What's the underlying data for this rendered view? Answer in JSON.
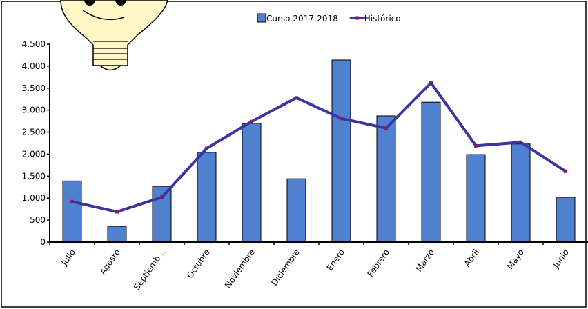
{
  "chart_data": {
    "type": "bar",
    "categories": [
      "Julio",
      "Agosto",
      "Septiemb...",
      "Octubre",
      "Noviembre",
      "Diciembre",
      "Enero",
      "Febrero",
      "Marzo",
      "Abril",
      "Mayo",
      "Junio"
    ],
    "series": [
      {
        "name": "Curso 2017-2018",
        "type": "bar",
        "color": "#4f81d0",
        "values": [
          1390,
          360,
          1270,
          2040,
          2700,
          1440,
          4140,
          2870,
          3180,
          1990,
          2230,
          1020
        ]
      },
      {
        "name": "Histórico",
        "type": "line",
        "color": "#3a35a0",
        "values": [
          920,
          690,
          1020,
          2130,
          2740,
          3280,
          2810,
          2590,
          3620,
          2190,
          2270,
          1610
        ]
      }
    ],
    "ylim": [
      0,
      4500
    ],
    "yticks": [
      0,
      500,
      {
        "value": 1000,
        "label": "1.000"
      },
      {
        "value": 1500,
        "label": "1.500"
      },
      {
        "value": 2000,
        "label": "2.000"
      },
      {
        "value": 2500,
        "label": "2.500"
      },
      {
        "value": 3000,
        "label": "3.000"
      },
      {
        "value": 3500,
        "label": "3.500"
      },
      {
        "value": 4000,
        "label": "4.000"
      },
      {
        "value": 4500,
        "label": "4.500"
      }
    ],
    "legend": "top"
  }
}
